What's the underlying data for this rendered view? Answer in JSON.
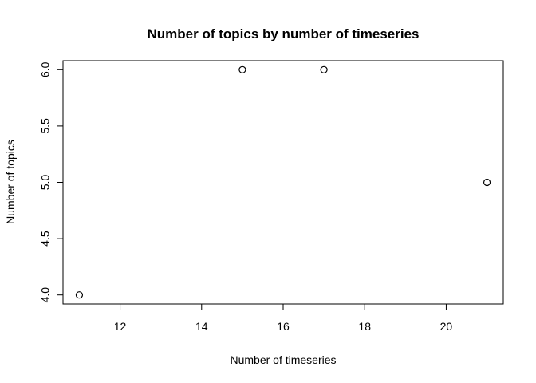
{
  "chart_data": {
    "type": "scatter",
    "title": "Number of topics by number of timeseries",
    "xlabel": "Number of timeseries",
    "ylabel": "Number of topics",
    "x": [
      11,
      15,
      17,
      21
    ],
    "y": [
      4,
      6,
      6,
      5
    ],
    "xlim": [
      10.6,
      21.4
    ],
    "ylim": [
      3.92,
      6.08
    ],
    "xticks": [
      "12",
      "14",
      "16",
      "18",
      "20"
    ],
    "yticks": [
      "4.0",
      "4.5",
      "5.0",
      "5.5",
      "6.0"
    ],
    "grid": false,
    "marker": "open-circle",
    "point_color": "#000000"
  }
}
